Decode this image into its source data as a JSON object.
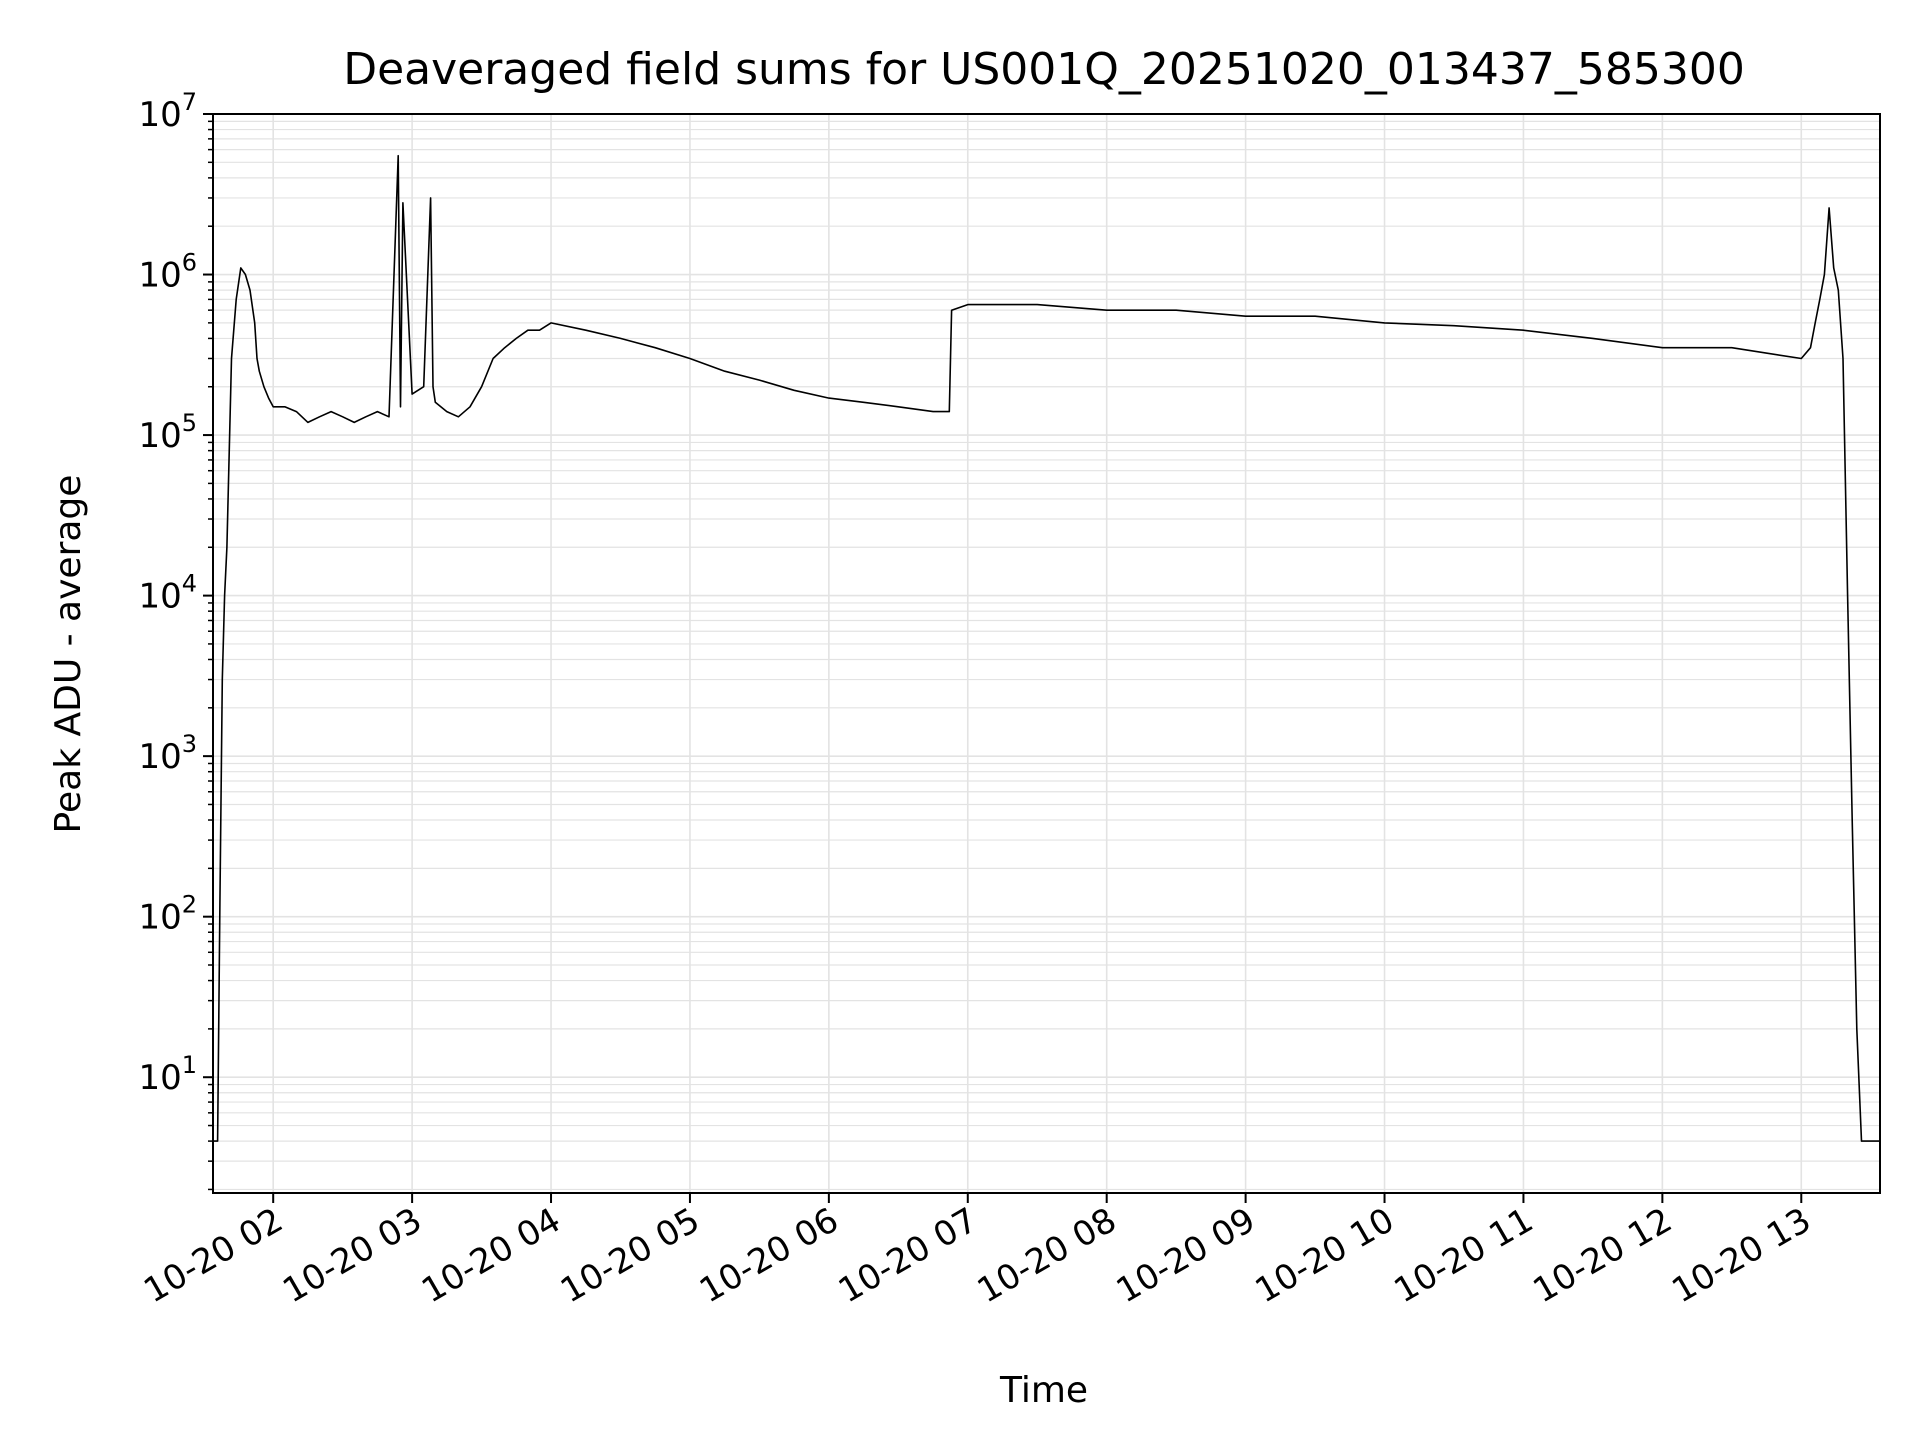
{
  "chart_data": {
    "type": "line",
    "title": "Deaveraged field sums for US001Q_20251020_013437_585300",
    "xlabel": "Time",
    "ylabel": "Peak ADU - average",
    "y_scale": "log",
    "ylim": [
      1.9,
      10000000
    ],
    "xlim": [
      "2025-10-20 01:34",
      "2025-10-20 13:34"
    ],
    "x_ticks": [
      {
        "value": "2025-10-20 02:00",
        "label": "10-20 02"
      },
      {
        "value": "2025-10-20 03:00",
        "label": "10-20 03"
      },
      {
        "value": "2025-10-20 04:00",
        "label": "10-20 04"
      },
      {
        "value": "2025-10-20 05:00",
        "label": "10-20 05"
      },
      {
        "value": "2025-10-20 06:00",
        "label": "10-20 06"
      },
      {
        "value": "2025-10-20 07:00",
        "label": "10-20 07"
      },
      {
        "value": "2025-10-20 08:00",
        "label": "10-20 08"
      },
      {
        "value": "2025-10-20 09:00",
        "label": "10-20 09"
      },
      {
        "value": "2025-10-20 10:00",
        "label": "10-20 10"
      },
      {
        "value": "2025-10-20 11:00",
        "label": "10-20 11"
      },
      {
        "value": "2025-10-20 12:00",
        "label": "10-20 12"
      },
      {
        "value": "2025-10-20 13:00",
        "label": "10-20 13"
      }
    ],
    "y_ticks": [
      {
        "value": 10,
        "base": "10",
        "exp": "1"
      },
      {
        "value": 100,
        "base": "10",
        "exp": "2"
      },
      {
        "value": 1000,
        "base": "10",
        "exp": "3"
      },
      {
        "value": 10000,
        "base": "10",
        "exp": "4"
      },
      {
        "value": 100000,
        "base": "10",
        "exp": "5"
      },
      {
        "value": 1000000,
        "base": "10",
        "exp": "6"
      },
      {
        "value": 10000000,
        "base": "10",
        "exp": "7"
      }
    ],
    "grid": true,
    "line_color": "#000000",
    "grid_color": "#e3e3e3",
    "series": [
      {
        "x": [
          "2025-10-20 01:34",
          "2025-10-20 01:36",
          "2025-10-20 01:37",
          "2025-10-20 01:38",
          "2025-10-20 01:39",
          "2025-10-20 01:40",
          "2025-10-20 01:42",
          "2025-10-20 01:44",
          "2025-10-20 01:46",
          "2025-10-20 01:48",
          "2025-10-20 01:50",
          "2025-10-20 01:52",
          "2025-10-20 01:53",
          "2025-10-20 01:54",
          "2025-10-20 01:56",
          "2025-10-20 01:58",
          "2025-10-20 02:00",
          "2025-10-20 02:05",
          "2025-10-20 02:10",
          "2025-10-20 02:15",
          "2025-10-20 02:20",
          "2025-10-20 02:25",
          "2025-10-20 02:30",
          "2025-10-20 02:35",
          "2025-10-20 02:40",
          "2025-10-20 02:45",
          "2025-10-20 02:50",
          "2025-10-20 02:54",
          "2025-10-20 02:55",
          "2025-10-20 02:56",
          "2025-10-20 03:00",
          "2025-10-20 03:05",
          "2025-10-20 03:08",
          "2025-10-20 03:09",
          "2025-10-20 03:10",
          "2025-10-20 03:15",
          "2025-10-20 03:20",
          "2025-10-20 03:25",
          "2025-10-20 03:30",
          "2025-10-20 03:35",
          "2025-10-20 03:40",
          "2025-10-20 03:45",
          "2025-10-20 03:50",
          "2025-10-20 03:55",
          "2025-10-20 04:00",
          "2025-10-20 04:15",
          "2025-10-20 04:30",
          "2025-10-20 04:45",
          "2025-10-20 05:00",
          "2025-10-20 05:15",
          "2025-10-20 05:30",
          "2025-10-20 05:45",
          "2025-10-20 06:00",
          "2025-10-20 06:15",
          "2025-10-20 06:30",
          "2025-10-20 06:45",
          "2025-10-20 06:52",
          "2025-10-20 06:53",
          "2025-10-20 07:00",
          "2025-10-20 07:30",
          "2025-10-20 08:00",
          "2025-10-20 08:30",
          "2025-10-20 09:00",
          "2025-10-20 09:30",
          "2025-10-20 10:00",
          "2025-10-20 10:30",
          "2025-10-20 11:00",
          "2025-10-20 11:30",
          "2025-10-20 12:00",
          "2025-10-20 12:30",
          "2025-10-20 13:00",
          "2025-10-20 13:04",
          "2025-10-20 13:06",
          "2025-10-20 13:08",
          "2025-10-20 13:10",
          "2025-10-20 13:12",
          "2025-10-20 13:14",
          "2025-10-20 13:16",
          "2025-10-20 13:18",
          "2025-10-20 13:20",
          "2025-10-20 13:22",
          "2025-10-20 13:24",
          "2025-10-20 13:26",
          "2025-10-20 13:34"
        ],
        "y": [
          4,
          4,
          120,
          3000,
          10000,
          20000,
          300000,
          700000,
          1100000,
          1000000,
          800000,
          500000,
          300000,
          250000,
          200000,
          170000,
          150000,
          150000,
          140000,
          120000,
          130000,
          140000,
          130000,
          120000,
          130000,
          140000,
          130000,
          5500000,
          150000,
          2800000,
          180000,
          200000,
          3000000,
          200000,
          160000,
          140000,
          130000,
          150000,
          200000,
          300000,
          350000,
          400000,
          450000,
          450000,
          500000,
          450000,
          400000,
          350000,
          300000,
          250000,
          220000,
          190000,
          170000,
          160000,
          150000,
          140000,
          140000,
          600000,
          650000,
          650000,
          600000,
          600000,
          550000,
          550000,
          500000,
          480000,
          450000,
          400000,
          350000,
          350000,
          300000,
          350000,
          500000,
          700000,
          1000000,
          2600000,
          1100000,
          800000,
          300000,
          10000,
          400,
          20,
          4,
          4
        ]
      }
    ]
  }
}
